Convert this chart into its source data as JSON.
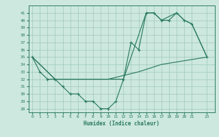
{
  "xlabel": "Humidex (Indice chaleur)",
  "x_main": [
    0,
    1,
    2,
    3,
    4,
    5,
    6,
    7,
    8,
    9,
    10,
    11,
    12,
    13,
    14,
    15,
    16,
    17,
    18,
    19,
    20,
    21,
    23
  ],
  "y_main": [
    35,
    33,
    32,
    32,
    31,
    30,
    30,
    29,
    29,
    28,
    28,
    29,
    32,
    37,
    36,
    41,
    41,
    40,
    40,
    41,
    40,
    39.5,
    35
  ],
  "x_upper": [
    0,
    3,
    12,
    15,
    16,
    17,
    19,
    20,
    21,
    23
  ],
  "y_upper": [
    35,
    32,
    32,
    41,
    41,
    40,
    41,
    40,
    39.5,
    35
  ],
  "x_lower": [
    0,
    3,
    10,
    14,
    17,
    20,
    23
  ],
  "y_lower": [
    35,
    32,
    32,
    33,
    34,
    34.5,
    35
  ],
  "ylim": [
    27.5,
    42
  ],
  "xlim": [
    -0.5,
    24
  ],
  "yticks": [
    28,
    29,
    30,
    31,
    32,
    33,
    34,
    35,
    36,
    37,
    38,
    39,
    40,
    41
  ],
  "xticks": [
    0,
    1,
    2,
    3,
    4,
    5,
    6,
    7,
    8,
    9,
    10,
    11,
    12,
    13,
    14,
    15,
    16,
    17,
    18,
    19,
    20,
    21,
    23
  ],
  "line_color": "#2a7a60",
  "bg_color": "#cde8df",
  "grid_color": "#9fc8b8",
  "figsize": [
    3.2,
    2.0
  ],
  "dpi": 100
}
